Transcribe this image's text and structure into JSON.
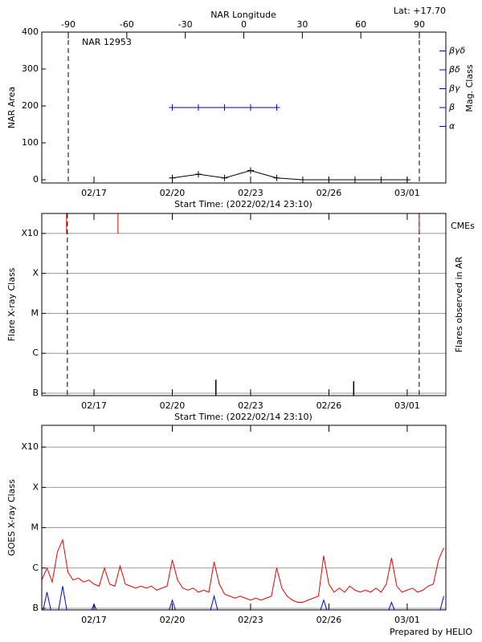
{
  "chart_data": [
    {
      "type": "line",
      "title": "NAR 12953",
      "subtitle": "Lat: +17.70",
      "x_label": "Start Time: (2022/02/14 23:10)",
      "x2_label": "NAR Longitude",
      "y_label": "NAR Area",
      "y2_label": "Mag. Class",
      "xlim": [
        15,
        30.48
      ],
      "xticks": [
        {
          "value": 17,
          "label": "02/17"
        },
        {
          "value": 20,
          "label": "02/20"
        },
        {
          "value": 23,
          "label": "02/23"
        },
        {
          "value": 26,
          "label": "02/26"
        },
        {
          "value": 29,
          "label": "03/01"
        }
      ],
      "x2lim": [
        -103.6,
        103.6
      ],
      "x2ticks": [
        -90,
        -60,
        -30,
        0,
        30,
        60,
        90
      ],
      "x2_vlines": [
        -90,
        90
      ],
      "ylim": [
        -8.7,
        400
      ],
      "yticks": [
        0,
        100,
        200,
        300,
        400
      ],
      "y2lim": [
        0,
        8
      ],
      "y2ticks": [
        {
          "value": 3,
          "label": "α"
        },
        {
          "value": 4,
          "label": "β"
        },
        {
          "value": 5,
          "label": "βγ"
        },
        {
          "value": 6,
          "label": "βδ"
        },
        {
          "value": 7,
          "label": "βγδ"
        }
      ],
      "y2_color": "#0000cc",
      "grid": false,
      "series": [
        {
          "color": "#000000",
          "x": [
            20,
            21,
            22,
            23,
            24,
            25,
            26,
            27,
            28,
            29
          ],
          "values": [
            5,
            15,
            5,
            25,
            5,
            0,
            0,
            0,
            0,
            0
          ]
        },
        {
          "color": "#0000cc",
          "axis": "y2",
          "x": [
            20,
            21,
            22,
            23,
            24
          ],
          "values": [
            4,
            4,
            4,
            4,
            4
          ]
        }
      ]
    },
    {
      "type": "bar",
      "x_label": "Start Time: (2022/02/14 23:10)",
      "y_label": "Flare X-ray Class",
      "y2_label": "Flares observed in AR",
      "xlim": [
        15,
        30.48
      ],
      "xticks": [
        {
          "value": 17,
          "label": "02/17"
        },
        {
          "value": 20,
          "label": "02/20"
        },
        {
          "value": 23,
          "label": "02/23"
        },
        {
          "value": 26,
          "label": "02/26"
        },
        {
          "value": 29,
          "label": "03/01"
        }
      ],
      "ylim": [
        -7.06,
        -2.5
      ],
      "yticks": [
        {
          "value": -7,
          "label": "B"
        },
        {
          "value": -6,
          "label": "C"
        },
        {
          "value": -5,
          "label": "M"
        },
        {
          "value": -4,
          "label": "X"
        },
        {
          "value": -3,
          "label": "X10"
        }
      ],
      "grid": true,
      "vlines": [
        15.98,
        29.46
      ],
      "cme": {
        "label": "CMEs",
        "color": "#cc0000",
        "x": [
          15.95,
          17.92,
          29.46
        ]
      },
      "series": [
        {
          "color": "#000000",
          "x": [
            21.67,
            26.95
          ],
          "values": [
            -6.66,
            -6.7
          ]
        }
      ]
    },
    {
      "type": "line",
      "y_label": "GOES X-ray Class",
      "xlim": [
        15,
        30.48
      ],
      "xticks": [
        {
          "value": 17,
          "label": "02/17"
        },
        {
          "value": 20,
          "label": "02/20"
        },
        {
          "value": 23,
          "label": "02/23"
        },
        {
          "value": 26,
          "label": "02/26"
        },
        {
          "value": 29,
          "label": "03/01"
        }
      ],
      "ylim": [
        -7.04,
        -2.46
      ],
      "yticks": [
        {
          "value": -7,
          "label": "B"
        },
        {
          "value": -6,
          "label": "C"
        },
        {
          "value": -5,
          "label": "M"
        },
        {
          "value": -4,
          "label": "X"
        },
        {
          "value": -3,
          "label": "X10"
        }
      ],
      "grid": true,
      "series": [
        {
          "color": "#ee0000",
          "x": [
            15.0,
            15.2,
            15.4,
            15.6,
            15.8,
            16.0,
            16.2,
            16.4,
            16.6,
            16.8,
            17.0,
            17.2,
            17.4,
            17.6,
            17.8,
            18.0,
            18.2,
            18.4,
            18.6,
            18.8,
            19.0,
            19.2,
            19.4,
            19.6,
            19.8,
            20.0,
            20.2,
            20.4,
            20.6,
            20.8,
            21.0,
            21.2,
            21.4,
            21.6,
            21.8,
            22.0,
            22.2,
            22.4,
            22.6,
            22.8,
            23.0,
            23.2,
            23.4,
            23.6,
            23.8,
            24.0,
            24.2,
            24.4,
            24.6,
            24.8,
            25.0,
            25.2,
            25.4,
            25.6,
            25.8,
            26.0,
            26.2,
            26.4,
            26.6,
            26.8,
            27.0,
            27.2,
            27.4,
            27.6,
            27.8,
            28.0,
            28.2,
            28.4,
            28.6,
            28.8,
            29.0,
            29.2,
            29.4,
            29.6,
            29.8,
            30.0,
            30.2,
            30.4
          ],
          "values": [
            -6.3,
            -6.0,
            -6.35,
            -5.6,
            -5.3,
            -6.1,
            -6.3,
            -6.25,
            -6.35,
            -6.3,
            -6.4,
            -6.45,
            -6.0,
            -6.4,
            -6.45,
            -5.95,
            -6.4,
            -6.45,
            -6.5,
            -6.45,
            -6.5,
            -6.45,
            -6.55,
            -6.5,
            -6.45,
            -5.8,
            -6.3,
            -6.5,
            -6.55,
            -6.5,
            -6.6,
            -6.55,
            -6.6,
            -5.85,
            -6.4,
            -6.65,
            -6.7,
            -6.75,
            -6.7,
            -6.75,
            -6.8,
            -6.75,
            -6.8,
            -6.75,
            -6.7,
            -6.0,
            -6.5,
            -6.7,
            -6.8,
            -6.85,
            -6.85,
            -6.8,
            -6.75,
            -6.7,
            -5.7,
            -6.4,
            -6.6,
            -6.5,
            -6.6,
            -6.45,
            -6.55,
            -6.6,
            -6.55,
            -6.6,
            -6.5,
            -6.6,
            -6.4,
            -5.75,
            -6.45,
            -6.6,
            -6.55,
            -6.5,
            -6.6,
            -6.55,
            -6.45,
            -6.4,
            -5.8,
            -5.5
          ]
        },
        {
          "color": "#0000ee",
          "x": [
            15.0,
            15.2,
            15.4,
            15.6,
            15.8,
            16.0,
            16.2,
            16.4,
            16.6,
            16.8,
            17.0,
            17.2,
            17.4,
            17.6,
            17.8,
            18.0,
            18.2,
            18.4,
            18.6,
            18.8,
            19.0,
            19.2,
            19.4,
            19.6,
            19.8,
            20.0,
            20.2,
            20.4,
            20.6,
            20.8,
            21.0,
            21.2,
            21.4,
            21.6,
            21.8,
            22.0,
            22.2,
            22.4,
            22.6,
            22.8,
            23.0,
            23.2,
            23.4,
            23.6,
            23.8,
            24.0,
            24.2,
            24.4,
            24.6,
            24.8,
            25.0,
            25.2,
            25.4,
            25.6,
            25.8,
            26.0,
            26.2,
            26.4,
            26.6,
            26.8,
            27.0,
            27.2,
            27.4,
            27.6,
            27.8,
            28.0,
            28.2,
            28.4,
            28.6,
            28.8,
            29.0,
            29.2,
            29.4,
            29.6,
            29.8,
            30.0,
            30.2,
            30.4
          ],
          "values": [
            -7.2,
            -6.6,
            -7.2,
            -7.2,
            -6.45,
            -7.2,
            -7.2,
            -7.2,
            -7.2,
            -7.2,
            -6.9,
            -7.2,
            -7.2,
            -7.2,
            -7.2,
            -7.2,
            -7.2,
            -7.2,
            -7.2,
            -7.2,
            -7.2,
            -7.2,
            -7.2,
            -7.2,
            -7.2,
            -6.8,
            -7.2,
            -7.2,
            -7.2,
            -7.2,
            -7.2,
            -7.2,
            -7.2,
            -6.7,
            -7.2,
            -7.2,
            -7.2,
            -7.2,
            -7.2,
            -7.2,
            -7.2,
            -7.2,
            -7.2,
            -7.2,
            -7.2,
            -7.2,
            -7.2,
            -7.2,
            -7.2,
            -7.2,
            -7.2,
            -7.2,
            -7.2,
            -7.2,
            -6.8,
            -7.2,
            -7.2,
            -7.2,
            -7.2,
            -7.2,
            -7.2,
            -7.2,
            -7.2,
            -7.2,
            -7.2,
            -7.2,
            -7.2,
            -6.85,
            -7.2,
            -7.2,
            -7.2,
            -7.2,
            -7.2,
            -7.2,
            -7.2,
            -7.2,
            -7.2,
            -6.7
          ]
        }
      ]
    }
  ],
  "footer": "Prepared by HELIO"
}
